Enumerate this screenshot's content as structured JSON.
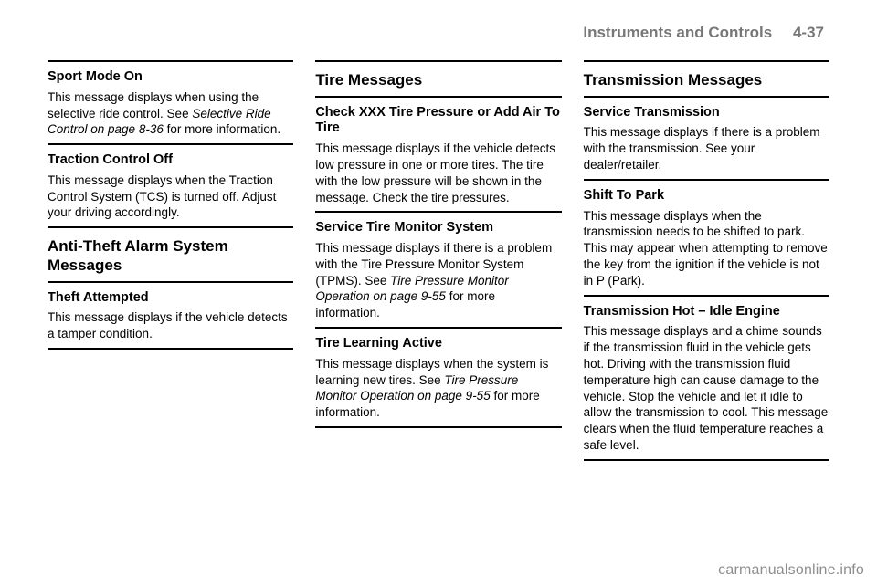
{
  "header": {
    "section": "Instruments and Controls",
    "page": "4-37"
  },
  "col1": {
    "sportMode": {
      "title": "Sport Mode On",
      "p1a": "This message displays when using the selective ride control. See ",
      "p1_ital": "Selective Ride Control on page 8-36",
      "p1b": " for more information."
    },
    "traction": {
      "title": "Traction Control Off",
      "body": "This message displays when the Traction Control System (TCS) is turned off. Adjust your driving accordingly."
    },
    "antiTheft": {
      "heading": "Anti-Theft Alarm System Messages",
      "sub": "Theft Attempted",
      "body": "This message displays if the vehicle detects a tamper condition."
    }
  },
  "col2": {
    "heading": "Tire Messages",
    "check": {
      "title": "Check XXX Tire Pressure or Add Air To Tire",
      "body": "This message displays if the vehicle detects low pressure in one or more tires. The tire with the low pressure will be shown in the message. Check the tire pressures."
    },
    "service": {
      "title": "Service Tire Monitor System",
      "p1a": "This message displays if there is a problem with the Tire Pressure Monitor System (TPMS). See ",
      "p1_ital": "Tire Pressure Monitor Operation on page 9-55",
      "p1b": " for more information."
    },
    "learning": {
      "title": "Tire Learning Active",
      "p1a": "This message displays when the system is learning new tires. See ",
      "p1_ital": "Tire Pressure Monitor Operation on page 9-55",
      "p1b": " for more information."
    }
  },
  "col3": {
    "heading": "Transmission Messages",
    "service": {
      "title": "Service Transmission",
      "body": "This message displays if there is a problem with the transmission. See your dealer/retailer."
    },
    "shift": {
      "title": "Shift To Park",
      "body": "This message displays when the transmission needs to be shifted to park. This may appear when attempting to remove the key from the ignition if the vehicle is not in P (Park)."
    },
    "hot": {
      "title": "Transmission Hot – Idle Engine",
      "body": "This message displays and a chime sounds if the transmission fluid in the vehicle gets hot. Driving with the transmission fluid temperature high can cause damage to the vehicle. Stop the vehicle and let it idle to allow the transmission to cool. This message clears when the fluid temperature reaches a safe level."
    }
  },
  "watermark": "carmanualsonline.info"
}
